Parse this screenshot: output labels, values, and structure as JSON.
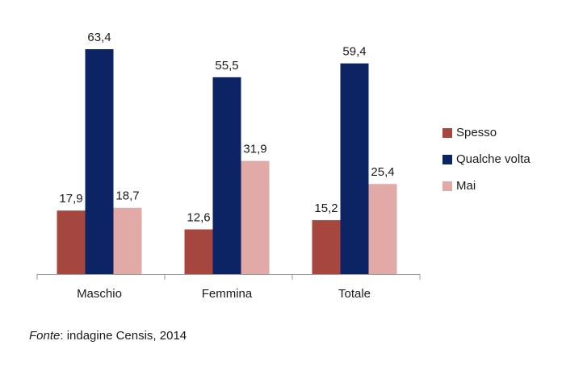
{
  "chart_data": {
    "type": "bar",
    "categories": [
      "Maschio",
      "Femmina",
      "Totale"
    ],
    "series": [
      {
        "name": "Spesso",
        "color": "#a5463f",
        "values": [
          17.9,
          12.6,
          15.2
        ]
      },
      {
        "name": "Qualche volta",
        "color": "#0d2464",
        "values": [
          63.4,
          55.5,
          59.4
        ]
      },
      {
        "name": "Mai",
        "color": "#e1aaa6",
        "values": [
          18.7,
          31.9,
          25.4
        ]
      }
    ],
    "value_labels": [
      [
        "17,9",
        "12,6",
        "15,2"
      ],
      [
        "63,4",
        "55,5",
        "59,4"
      ],
      [
        "18,7",
        "31,9",
        "25,4"
      ]
    ],
    "ylim": [
      0,
      70
    ],
    "grid": false,
    "legend_position": "right"
  },
  "source": {
    "label": "Fonte",
    "text": ": indagine Censis, 2014"
  }
}
